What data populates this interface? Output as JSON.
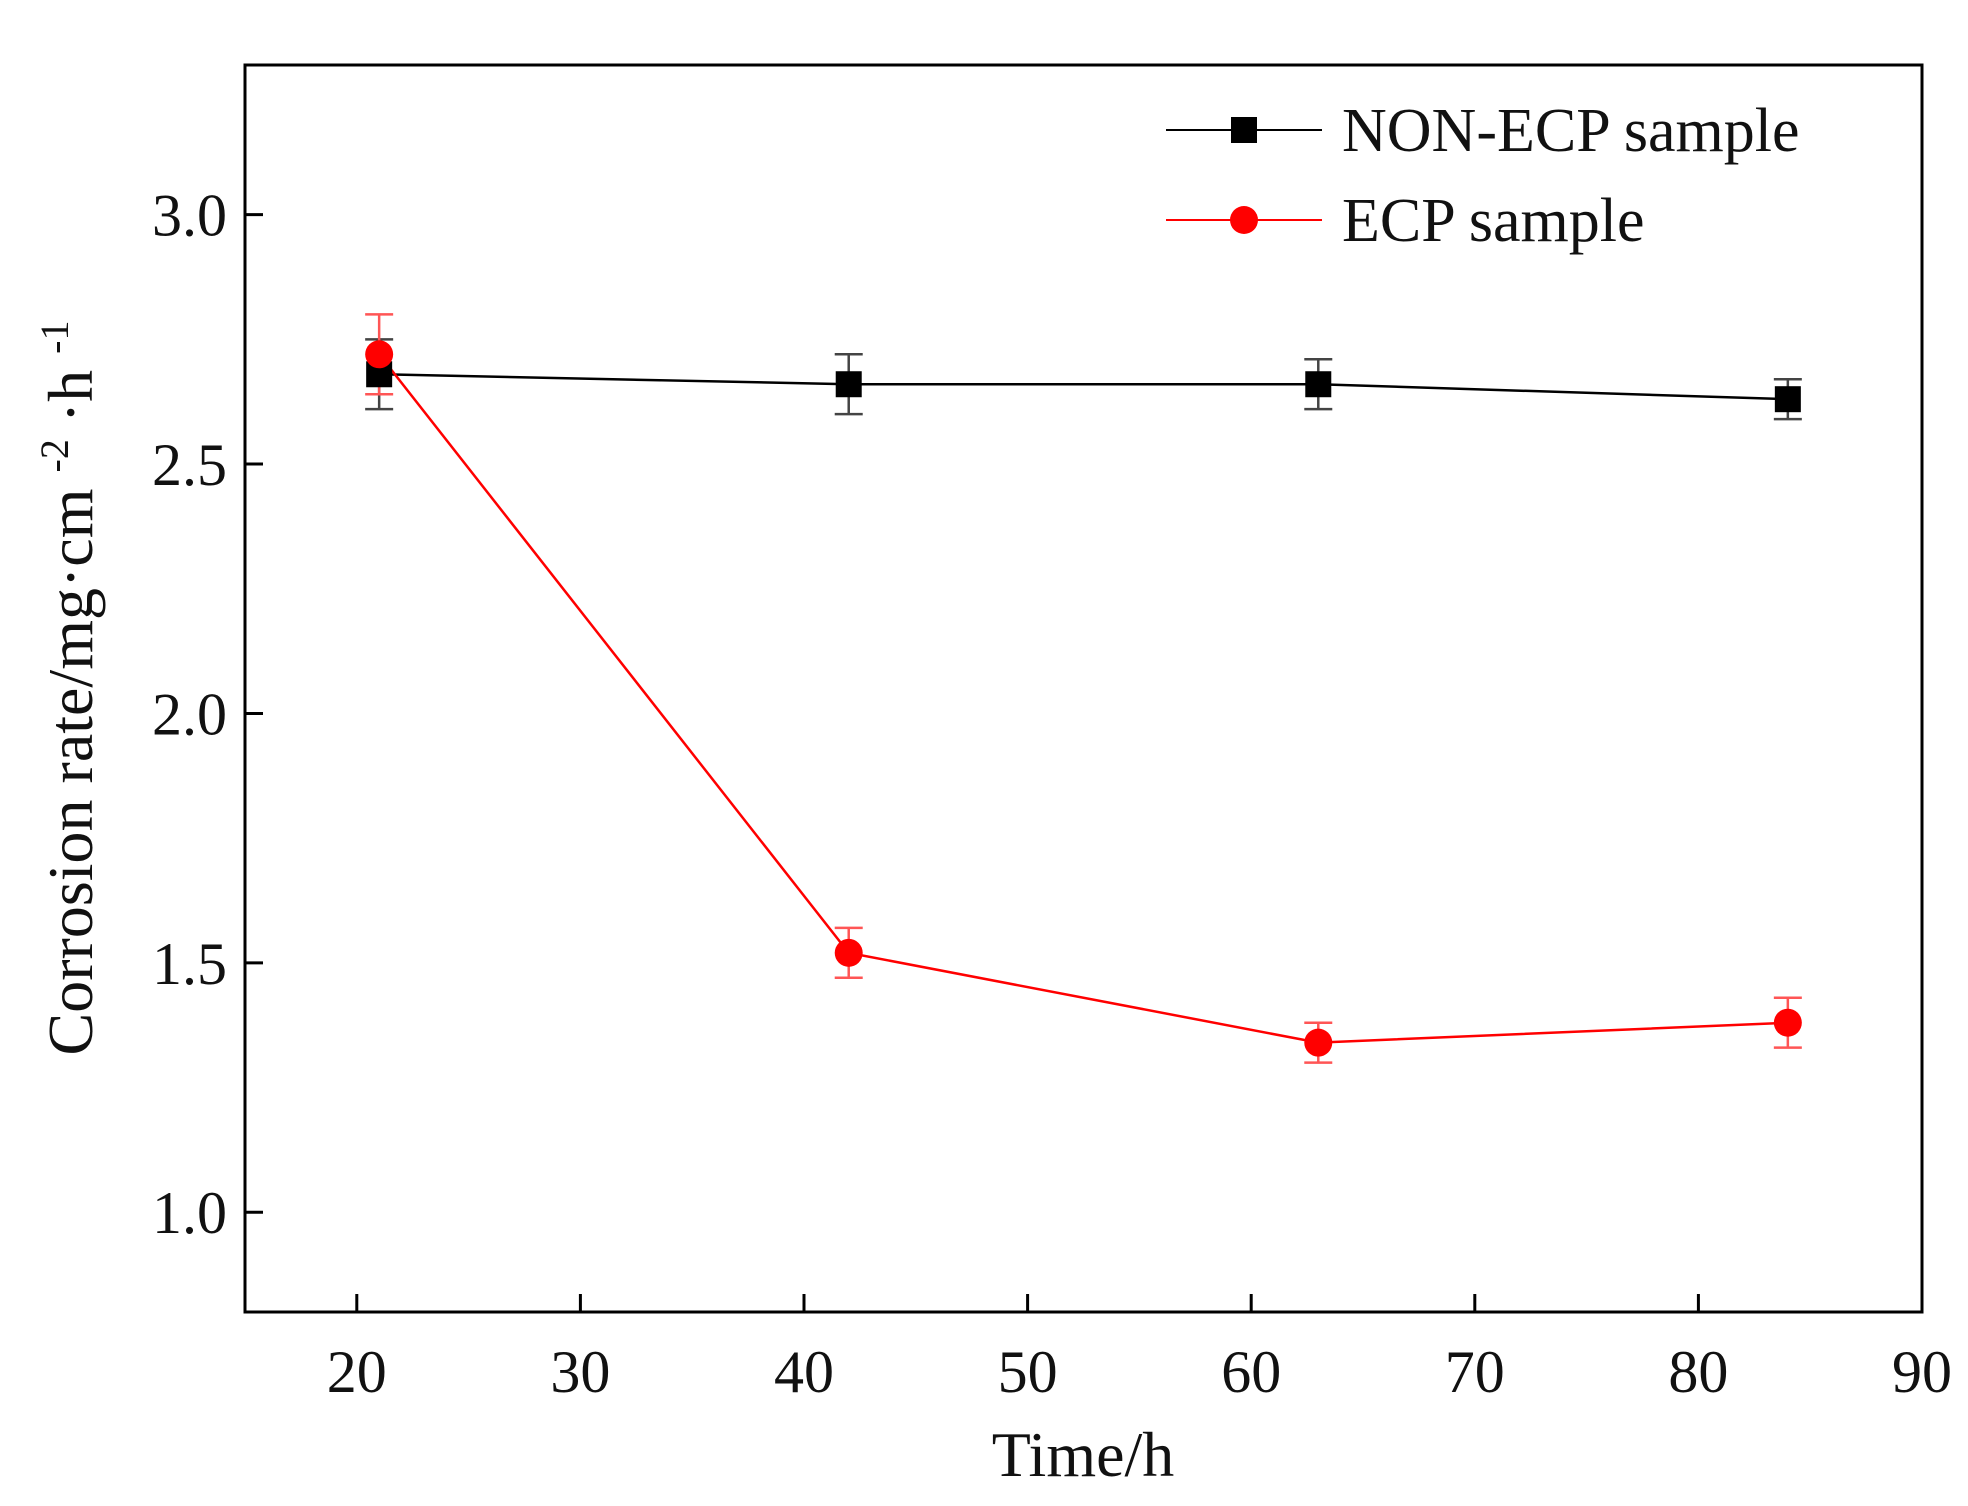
{
  "chart_data": {
    "type": "line",
    "title": "",
    "xlabel": "Time/h",
    "ylabel_main": "Corrosion rate/mg·cm",
    "ylabel_exp1": "-2",
    "ylabel_mid": "·h",
    "ylabel_exp2": "-1",
    "xlim": [
      15,
      90
    ],
    "ylim": [
      0.8,
      3.3
    ],
    "xticks": [
      20,
      30,
      40,
      50,
      60,
      70,
      80,
      90
    ],
    "xtick_labels": [
      "20",
      "30",
      "40",
      "50",
      "60",
      "70",
      "80",
      "90"
    ],
    "yticks": [
      1.0,
      1.5,
      2.0,
      2.5,
      3.0
    ],
    "ytick_labels": [
      "1.0",
      "1.5",
      "2.0",
      "2.5",
      "3.0"
    ],
    "legend_position": "top-right",
    "series": [
      {
        "name": "NON-ECP sample",
        "color": "#000000",
        "marker": "square",
        "x": [
          21,
          42,
          63,
          84
        ],
        "y": [
          2.68,
          2.66,
          2.66,
          2.63
        ],
        "err": [
          0.07,
          0.06,
          0.05,
          0.04
        ]
      },
      {
        "name": "ECP sample",
        "color": "#ff0000",
        "marker": "circle",
        "x": [
          21,
          42,
          63,
          84
        ],
        "y": [
          2.72,
          1.52,
          1.34,
          1.38
        ],
        "err": [
          0.08,
          0.05,
          0.04,
          0.05
        ]
      }
    ]
  }
}
